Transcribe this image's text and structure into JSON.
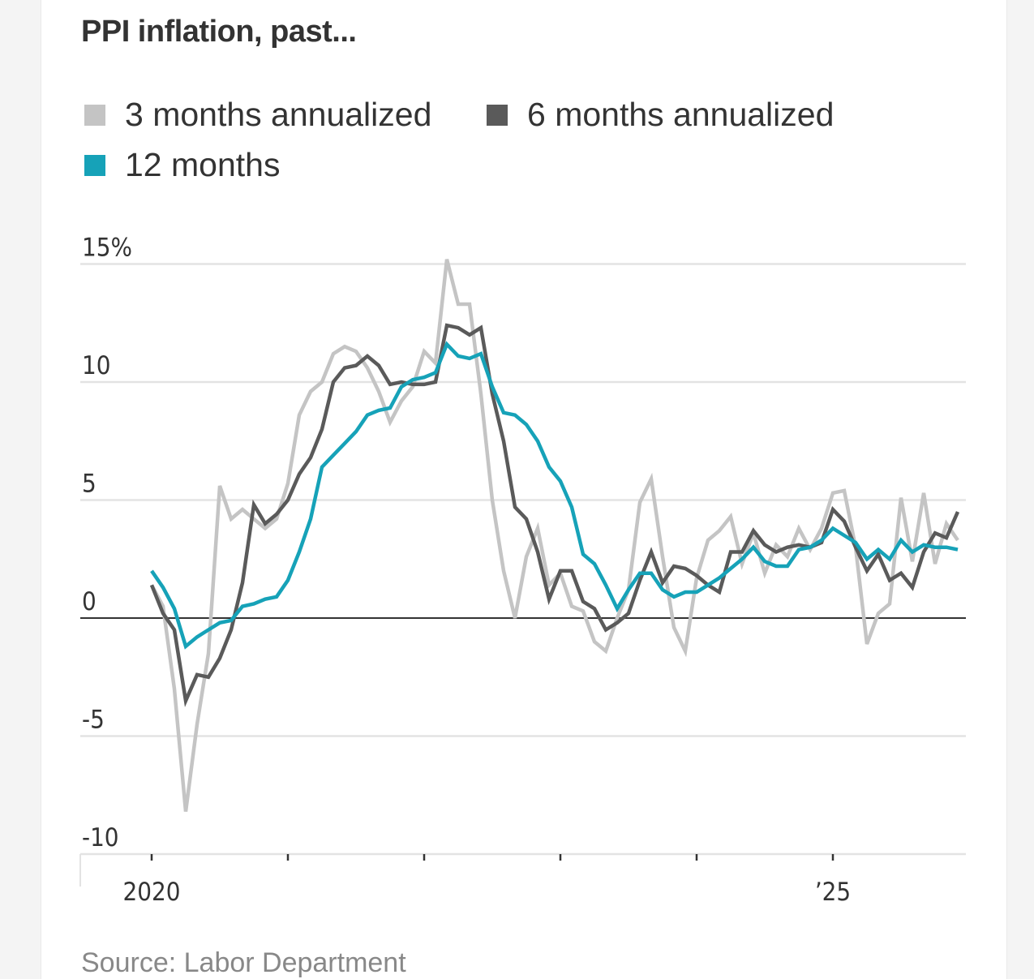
{
  "chart_data": {
    "type": "line",
    "title": "PPI inflation, past...",
    "source": "Source: Labor Department",
    "ylim": [
      -10,
      15
    ],
    "y_ticks": [
      {
        "value": 15,
        "label": "15%"
      },
      {
        "value": 10,
        "label": "10"
      },
      {
        "value": 5,
        "label": "5"
      },
      {
        "value": 0,
        "label": "0"
      },
      {
        "value": -5,
        "label": "-5"
      },
      {
        "value": -10,
        "label": "-10"
      }
    ],
    "x_ticks": [
      {
        "year": 2020,
        "label": "2020"
      },
      {
        "year": 2021,
        "label": ""
      },
      {
        "year": 2022,
        "label": ""
      },
      {
        "year": 2023,
        "label": ""
      },
      {
        "year": 2024,
        "label": ""
      },
      {
        "year": 2025,
        "label": "’25"
      }
    ],
    "x_start": "2020-01",
    "grid": true,
    "legend_position": "top",
    "series": [
      {
        "name": "3 months annualized",
        "color": "#c4c4c4",
        "values": [
          1.4,
          0.5,
          -3,
          -8.2,
          -4.5,
          -1.5,
          5.6,
          4.2,
          4.6,
          4.2,
          3.8,
          4.2,
          5.7,
          8.6,
          9.6,
          10.0,
          11.2,
          11.5,
          11.3,
          10.6,
          9.6,
          8.3,
          9.2,
          9.8,
          11.3,
          10.8,
          15.2,
          13.3,
          13.3,
          9.5,
          5.0,
          2.0,
          0,
          2.6,
          3.8,
          1.4,
          1.9,
          0.5,
          0.3,
          -1.0,
          -1.4,
          0,
          1.2,
          4.9,
          5.9,
          2.6,
          -0.4,
          -1.4,
          1.7,
          3.3,
          3.7,
          4.3,
          2.3,
          3.6,
          1.9,
          3.1,
          2.6,
          3.8,
          2.9,
          3.8,
          5.3,
          5.4,
          3.0,
          -1.1,
          0.2,
          0.6,
          5.1,
          2.4,
          5.3,
          2.3,
          4.0,
          3.3
        ]
      },
      {
        "name": "6 months annualized",
        "color": "#5a5a5a",
        "values": [
          1.4,
          0.2,
          -0.5,
          -3.5,
          -2.4,
          -2.5,
          -1.7,
          -0.5,
          1.5,
          4.8,
          4.0,
          4.4,
          5.0,
          6.1,
          6.8,
          8.0,
          10.0,
          10.6,
          10.7,
          11.1,
          10.7,
          9.9,
          10.0,
          9.9,
          9.9,
          10.0,
          12.4,
          12.3,
          12.0,
          12.3,
          9.5,
          7.5,
          4.7,
          4.2,
          2.8,
          0.8,
          2.0,
          2.0,
          0.7,
          0.4,
          -0.5,
          -0.2,
          0.2,
          1.6,
          2.8,
          1.5,
          2.2,
          2.1,
          1.8,
          1.4,
          1.1,
          2.8,
          2.8,
          3.7,
          3.1,
          2.8,
          3.0,
          3.1,
          3.0,
          3.2,
          4.6,
          4.1,
          3.0,
          2.0,
          2.7,
          1.6,
          1.9,
          1.3,
          2.8,
          3.6,
          3.4,
          4.5
        ]
      },
      {
        "name": "12 months",
        "color": "#16a2b8",
        "values": [
          2.0,
          1.3,
          0.4,
          -1.2,
          -0.8,
          -0.5,
          -0.2,
          -0.1,
          0.5,
          0.6,
          0.8,
          0.9,
          1.6,
          2.8,
          4.2,
          6.4,
          6.9,
          7.4,
          7.9,
          8.6,
          8.8,
          8.9,
          9.8,
          10.1,
          10.2,
          10.4,
          11.6,
          11.1,
          11.0,
          11.2,
          9.8,
          8.7,
          8.6,
          8.2,
          7.5,
          6.4,
          5.8,
          4.7,
          2.7,
          2.3,
          1.4,
          0.4,
          1.2,
          1.9,
          1.9,
          1.2,
          0.9,
          1.1,
          1.1,
          1.4,
          1.7,
          2.1,
          2.5,
          3.0,
          2.4,
          2.2,
          2.2,
          2.9,
          3.0,
          3.3,
          3.8,
          3.5,
          3.2,
          2.5,
          2.9,
          2.5,
          3.3,
          2.8,
          3.1,
          3.0,
          3.0,
          2.9
        ]
      }
    ]
  }
}
